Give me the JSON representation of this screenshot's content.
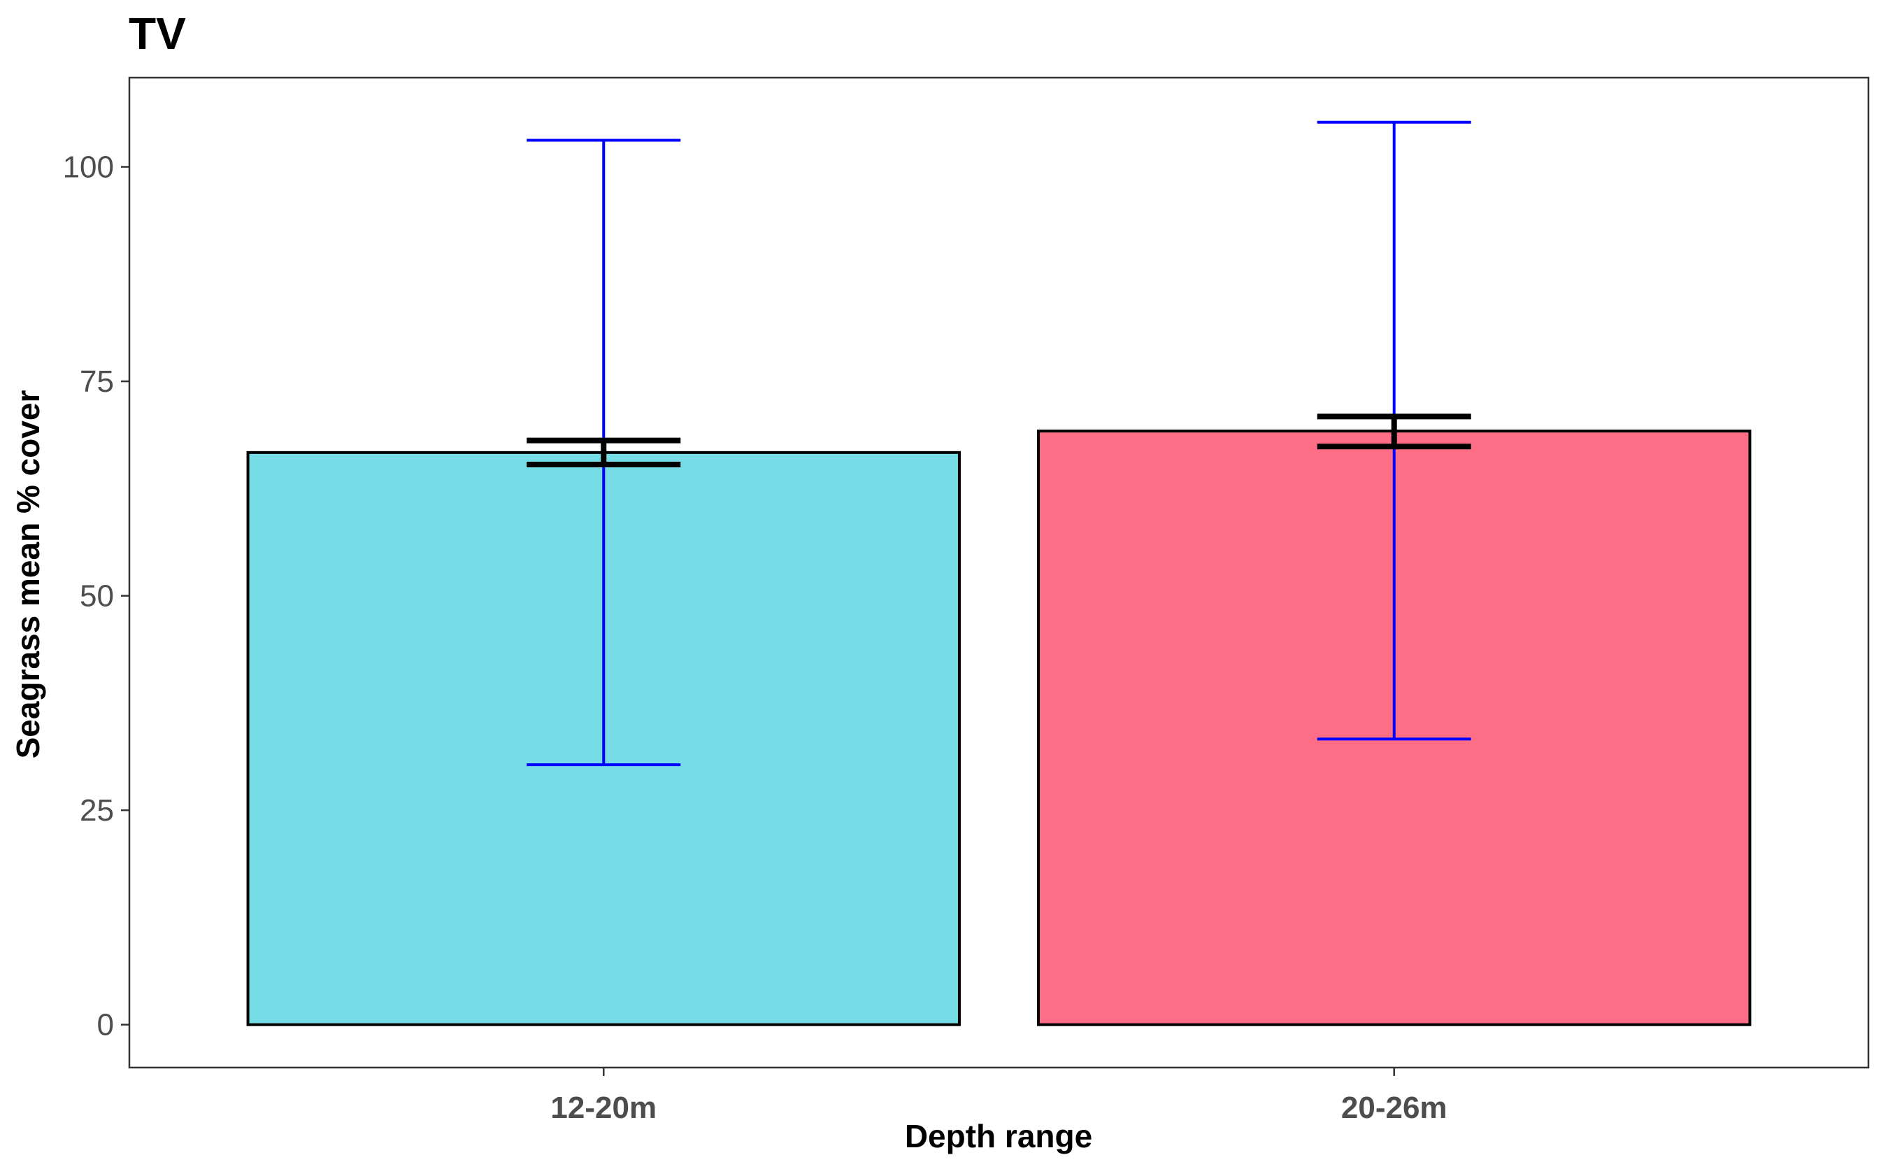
{
  "chart_data": {
    "type": "bar",
    "title": "TV",
    "xlabel": "Depth range",
    "ylabel": "Seagrass mean % cover",
    "categories": [
      "12-20m",
      "20-26m"
    ],
    "values": [
      66.7,
      69.2
    ],
    "se_bounds": [
      [
        65.3,
        68.1
      ],
      [
        67.4,
        70.9
      ]
    ],
    "sd_bounds": [
      [
        30.3,
        103.1
      ],
      [
        33.3,
        105.2
      ]
    ],
    "bar_colors": [
      "#76DDE7",
      "#FE6E86"
    ],
    "sd_color": "#0000FF",
    "se_color": "#000000",
    "ylim": [
      -5,
      110.4
    ],
    "yticks": [
      0,
      25,
      50,
      75,
      100
    ],
    "grid": false
  }
}
